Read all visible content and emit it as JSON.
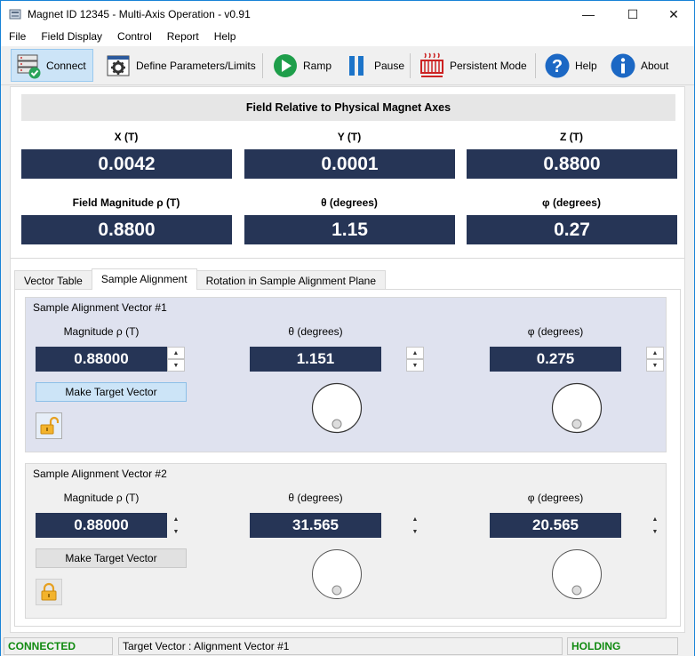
{
  "window": {
    "title": "Magnet ID 12345 - Multi-Axis Operation - v0.91",
    "minimize_glyph": "—",
    "maximize_glyph": "☐",
    "close_glyph": "✕"
  },
  "menu": [
    "File",
    "Field Display",
    "Control",
    "Report",
    "Help"
  ],
  "toolbar": {
    "connect": "Connect",
    "define": "Define Parameters/Limits",
    "ramp": "Ramp",
    "pause": "Pause",
    "persistent": "Persistent Mode",
    "help": "Help",
    "about": "About"
  },
  "field": {
    "header": "Field Relative to Physical Magnet Axes",
    "x_label": "X (T)",
    "x_value": "0.0042",
    "y_label": "Y (T)",
    "y_value": "0.0001",
    "z_label": "Z (T)",
    "z_value": "0.8800",
    "mag_label": "Field Magnitude ρ (T)",
    "mag_value": "0.8800",
    "theta_label": "θ (degrees)",
    "theta_value": "1.15",
    "phi_label": "φ (degrees)",
    "phi_value": "0.27"
  },
  "tabs": [
    "Vector Table",
    "Sample Alignment",
    "Rotation in Sample Alignment Plane"
  ],
  "active_tab": "Sample Alignment",
  "vector1": {
    "title": "Sample Alignment Vector #1",
    "mag_label": "Magnitude ρ (T)",
    "mag_value": "0.88000",
    "theta_label": "θ (degrees)",
    "theta_value": "1.151",
    "phi_label": "φ (degrees)",
    "phi_value": "0.275",
    "make_target": "Make Target Vector",
    "lock_state": "unlocked"
  },
  "vector2": {
    "title": "Sample Alignment Vector #2",
    "mag_label": "Magnitude ρ (T)",
    "mag_value": "0.88000",
    "theta_label": "θ (degrees)",
    "theta_value": "31.565",
    "phi_label": "φ (degrees)",
    "phi_value": "20.565",
    "make_target": "Make Target Vector",
    "lock_state": "locked"
  },
  "status": {
    "connection": "CONNECTED",
    "target": "Target Vector : Alignment Vector #1",
    "state": "HOLDING"
  },
  "colors": {
    "readout_bg": "#263556",
    "selected_group_bg": "#dfe2ef",
    "status_ok": "#108a10",
    "ramp_green": "#1e9e4a",
    "pause_blue": "#1c74c9",
    "help_blue": "#1c68c4"
  },
  "icons": {
    "connect": "server-check-icon",
    "define": "gear-window-icon",
    "ramp": "play-icon",
    "pause": "pause-icon",
    "persistent": "heater-coil-icon",
    "help": "question-icon",
    "about": "info-icon"
  }
}
